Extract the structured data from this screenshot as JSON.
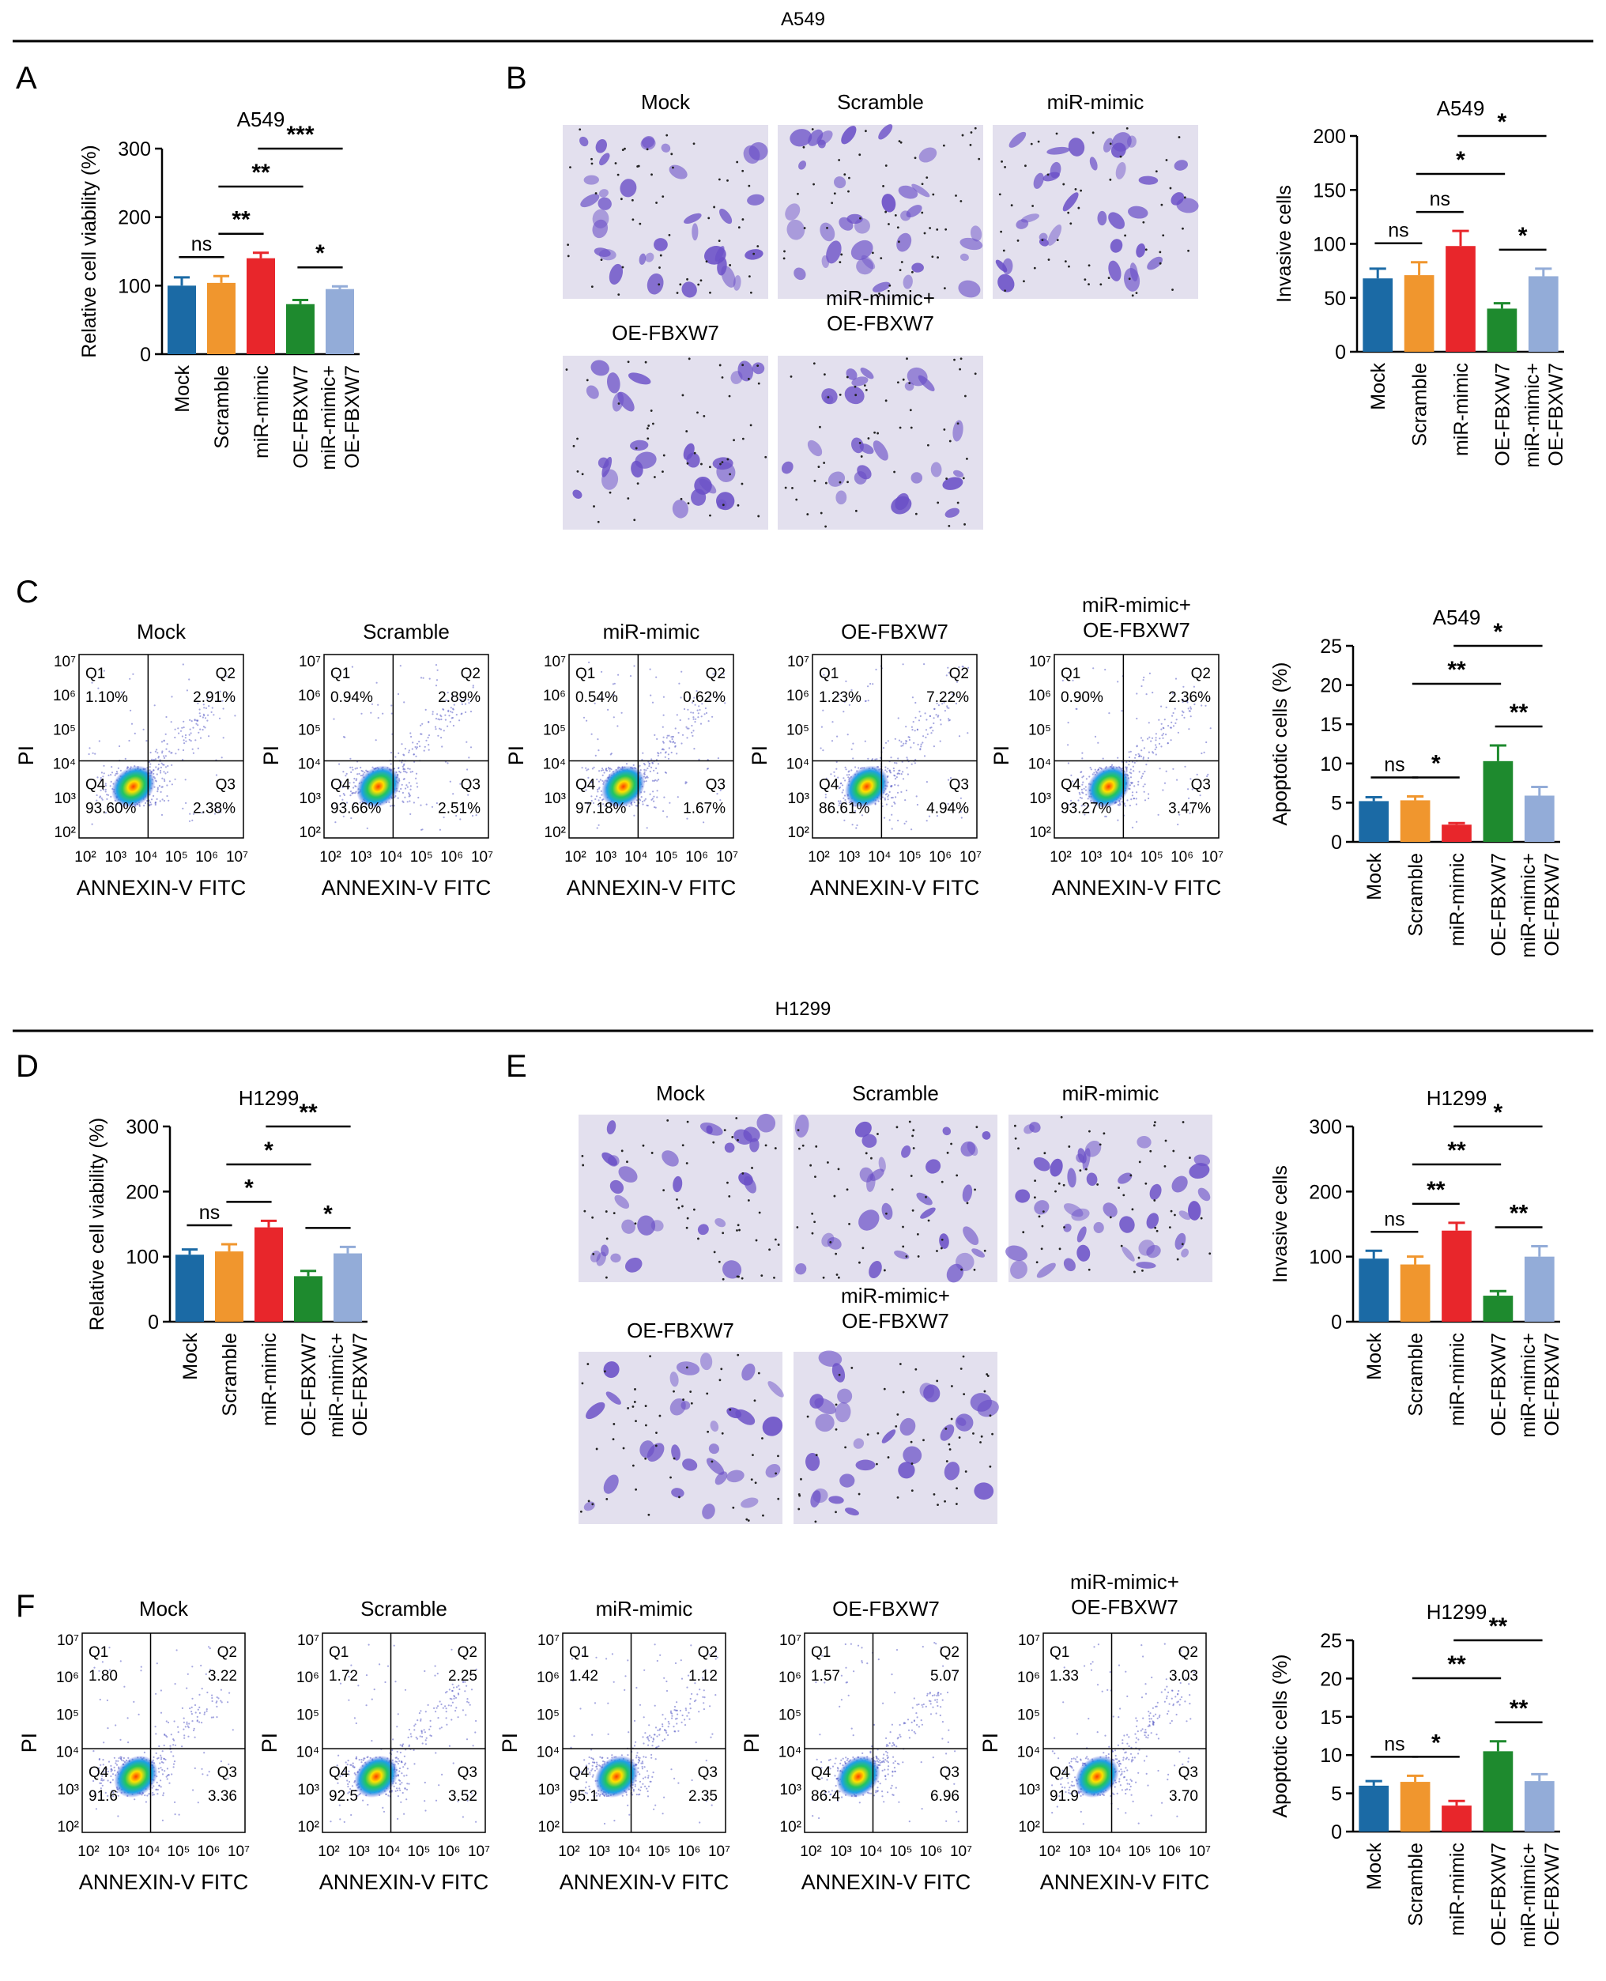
{
  "sections": [
    {
      "title": "A549"
    },
    {
      "title": "H1299"
    }
  ],
  "panel_letters": [
    "A",
    "B",
    "C",
    "D",
    "E",
    "F"
  ],
  "colors": {
    "Mock": "#1b6aa5",
    "Scramble": "#f0962e",
    "miR-mimic": "#e8262b",
    "OE-FBXW7": "#1e8a2e",
    "miR-mimic+OE-FBXW7": "#93acd8",
    "stain": "#6a4fc7",
    "stain_bg": "#e3e0ee"
  },
  "micrographs": {
    "B": [
      "Mock",
      "Scramble",
      "miR-mimic",
      "OE-FBXW7",
      "miR-mimic+\nOE-FBXW7"
    ],
    "E": [
      "Mock",
      "Scramble",
      "miR-mimic",
      "OE-FBXW7",
      "miR-mimic+\nOE-FBXW7"
    ]
  },
  "flow": {
    "C": [
      {
        "title": "Mock",
        "q1": "1.10%",
        "q2": "2.91%",
        "q3": "2.38%",
        "q4": "93.60%"
      },
      {
        "title": "Scramble",
        "q1": "0.94%",
        "q2": "2.89%",
        "q3": "2.51%",
        "q4": "93.66%"
      },
      {
        "title": "miR-mimic",
        "q1": "0.54%",
        "q2": "0.62%",
        "q3": "1.67%",
        "q4": "97.18%"
      },
      {
        "title": "OE-FBXW7",
        "q1": "1.23%",
        "q2": "7.22%",
        "q3": "4.94%",
        "q4": "86.61%"
      },
      {
        "title": "miR-mimic+\nOE-FBXW7",
        "q1": "0.90%",
        "q2": "2.36%",
        "q3": "3.47%",
        "q4": "93.27%"
      }
    ],
    "F": [
      {
        "title": "Mock",
        "q1": "1.80",
        "q2": "3.22",
        "q3": "3.36",
        "q4": "91.6"
      },
      {
        "title": "Scramble",
        "q1": "1.72",
        "q2": "2.25",
        "q3": "3.52",
        "q4": "92.5"
      },
      {
        "title": "miR-mimic",
        "q1": "1.42",
        "q2": "1.12",
        "q3": "2.35",
        "q4": "95.1"
      },
      {
        "title": "OE-FBXW7",
        "q1": "1.57",
        "q2": "5.07",
        "q3": "6.96",
        "q4": "86.4"
      },
      {
        "title": "miR-mimic+\nOE-FBXW7",
        "q1": "1.33",
        "q2": "3.03",
        "q3": "3.70",
        "q4": "91.9"
      }
    ],
    "xlabel": "ANNEXIN-V FITC",
    "ylabel": "PI",
    "quadrant_labels": [
      "Q1",
      "Q2",
      "Q3",
      "Q4"
    ],
    "tick_exponents": [
      2,
      3,
      4,
      5,
      6,
      7
    ]
  },
  "chart_data": [
    {
      "panel": "A",
      "type": "bar",
      "title": "A549",
      "ylabel": "Relative cell viability (%)",
      "categories": [
        "Mock",
        "Scramble",
        "miR-mimic",
        "OE-FBXW7",
        "miR-mimic+\nOE-FBXW7"
      ],
      "values": [
        100,
        104,
        140,
        73,
        95
      ],
      "errors": [
        12,
        10,
        8,
        6,
        4
      ],
      "ylim": [
        0,
        300
      ],
      "yticks": [
        0,
        100,
        200,
        300
      ],
      "sig": [
        {
          "a": 0,
          "b": 1,
          "label": "ns"
        },
        {
          "a": 1,
          "b": 2,
          "label": "**"
        },
        {
          "a": 1,
          "b": 3,
          "label": "**"
        },
        {
          "a": 2,
          "b": 4,
          "label": "***"
        },
        {
          "a": 3,
          "b": 4,
          "label": "*"
        }
      ]
    },
    {
      "panel": "B",
      "type": "bar",
      "title": "A549",
      "ylabel": "Invasive cells",
      "categories": [
        "Mock",
        "Scramble",
        "miR-mimic",
        "OE-FBXW7",
        "miR-mimic+\nOE-FBXW7"
      ],
      "values": [
        68,
        71,
        98,
        40,
        70
      ],
      "errors": [
        9,
        12,
        14,
        5,
        7
      ],
      "ylim": [
        0,
        200
      ],
      "yticks": [
        0,
        50,
        100,
        150,
        200
      ],
      "sig": [
        {
          "a": 0,
          "b": 1,
          "label": "ns"
        },
        {
          "a": 1,
          "b": 2,
          "label": "ns"
        },
        {
          "a": 1,
          "b": 3,
          "label": "*"
        },
        {
          "a": 2,
          "b": 4,
          "label": "*"
        },
        {
          "a": 3,
          "b": 4,
          "label": "*"
        }
      ]
    },
    {
      "panel": "C",
      "type": "bar",
      "title": "A549",
      "ylabel": "Apoptotic cells (%)",
      "categories": [
        "Mock",
        "Scramble",
        "miR-mimic",
        "OE-FBXW7",
        "miR-mimic+\nOE-FBXW7"
      ],
      "values": [
        5.2,
        5.3,
        2.2,
        10.3,
        5.9
      ],
      "errors": [
        0.5,
        0.5,
        0.2,
        2.0,
        1.1
      ],
      "ylim": [
        0,
        25
      ],
      "yticks": [
        0,
        5,
        10,
        15,
        20,
        25
      ],
      "sig": [
        {
          "a": 0,
          "b": 1,
          "label": "ns"
        },
        {
          "a": 1,
          "b": 2,
          "label": "*"
        },
        {
          "a": 1,
          "b": 3,
          "label": "**"
        },
        {
          "a": 2,
          "b": 4,
          "label": "*"
        },
        {
          "a": 3,
          "b": 4,
          "label": "**"
        }
      ]
    },
    {
      "panel": "D",
      "type": "bar",
      "title": "H1299",
      "ylabel": "Relative cell viability (%)",
      "categories": [
        "Mock",
        "Scramble",
        "miR-mimic",
        "OE-FBXW7",
        "miR-mimic+\nOE-FBXW7"
      ],
      "values": [
        103,
        108,
        145,
        70,
        105
      ],
      "errors": [
        8,
        11,
        10,
        8,
        10
      ],
      "ylim": [
        0,
        300
      ],
      "yticks": [
        0,
        100,
        200,
        300
      ],
      "sig": [
        {
          "a": 0,
          "b": 1,
          "label": "ns"
        },
        {
          "a": 1,
          "b": 2,
          "label": "*"
        },
        {
          "a": 1,
          "b": 3,
          "label": "*"
        },
        {
          "a": 2,
          "b": 4,
          "label": "**"
        },
        {
          "a": 3,
          "b": 4,
          "label": "*"
        }
      ]
    },
    {
      "panel": "E",
      "type": "bar",
      "title": "H1299",
      "ylabel": "Invasive cells",
      "categories": [
        "Mock",
        "Scramble",
        "miR-mimic",
        "OE-FBXW7",
        "miR-mimic+\nOE-FBXW7"
      ],
      "values": [
        97,
        88,
        140,
        40,
        100
      ],
      "errors": [
        12,
        12,
        12,
        7,
        16
      ],
      "ylim": [
        0,
        300
      ],
      "yticks": [
        0,
        100,
        200,
        300
      ],
      "sig": [
        {
          "a": 0,
          "b": 1,
          "label": "ns"
        },
        {
          "a": 1,
          "b": 2,
          "label": "**"
        },
        {
          "a": 1,
          "b": 3,
          "label": "**"
        },
        {
          "a": 2,
          "b": 4,
          "label": "*"
        },
        {
          "a": 3,
          "b": 4,
          "label": "**"
        }
      ]
    },
    {
      "panel": "F",
      "type": "bar",
      "title": "H1299",
      "ylabel": "Apoptotic cells (%)",
      "categories": [
        "Mock",
        "Scramble",
        "miR-mimic",
        "OE-FBXW7",
        "miR-mimic+\nOE-FBXW7"
      ],
      "values": [
        6.0,
        6.5,
        3.4,
        10.5,
        6.6
      ],
      "errors": [
        0.6,
        0.8,
        0.6,
        1.3,
        0.9
      ],
      "ylim": [
        0,
        25
      ],
      "yticks": [
        0,
        5,
        10,
        15,
        20,
        25
      ],
      "sig": [
        {
          "a": 0,
          "b": 1,
          "label": "ns"
        },
        {
          "a": 1,
          "b": 2,
          "label": "*"
        },
        {
          "a": 1,
          "b": 3,
          "label": "**"
        },
        {
          "a": 2,
          "b": 4,
          "label": "**"
        },
        {
          "a": 3,
          "b": 4,
          "label": "**"
        }
      ]
    }
  ]
}
